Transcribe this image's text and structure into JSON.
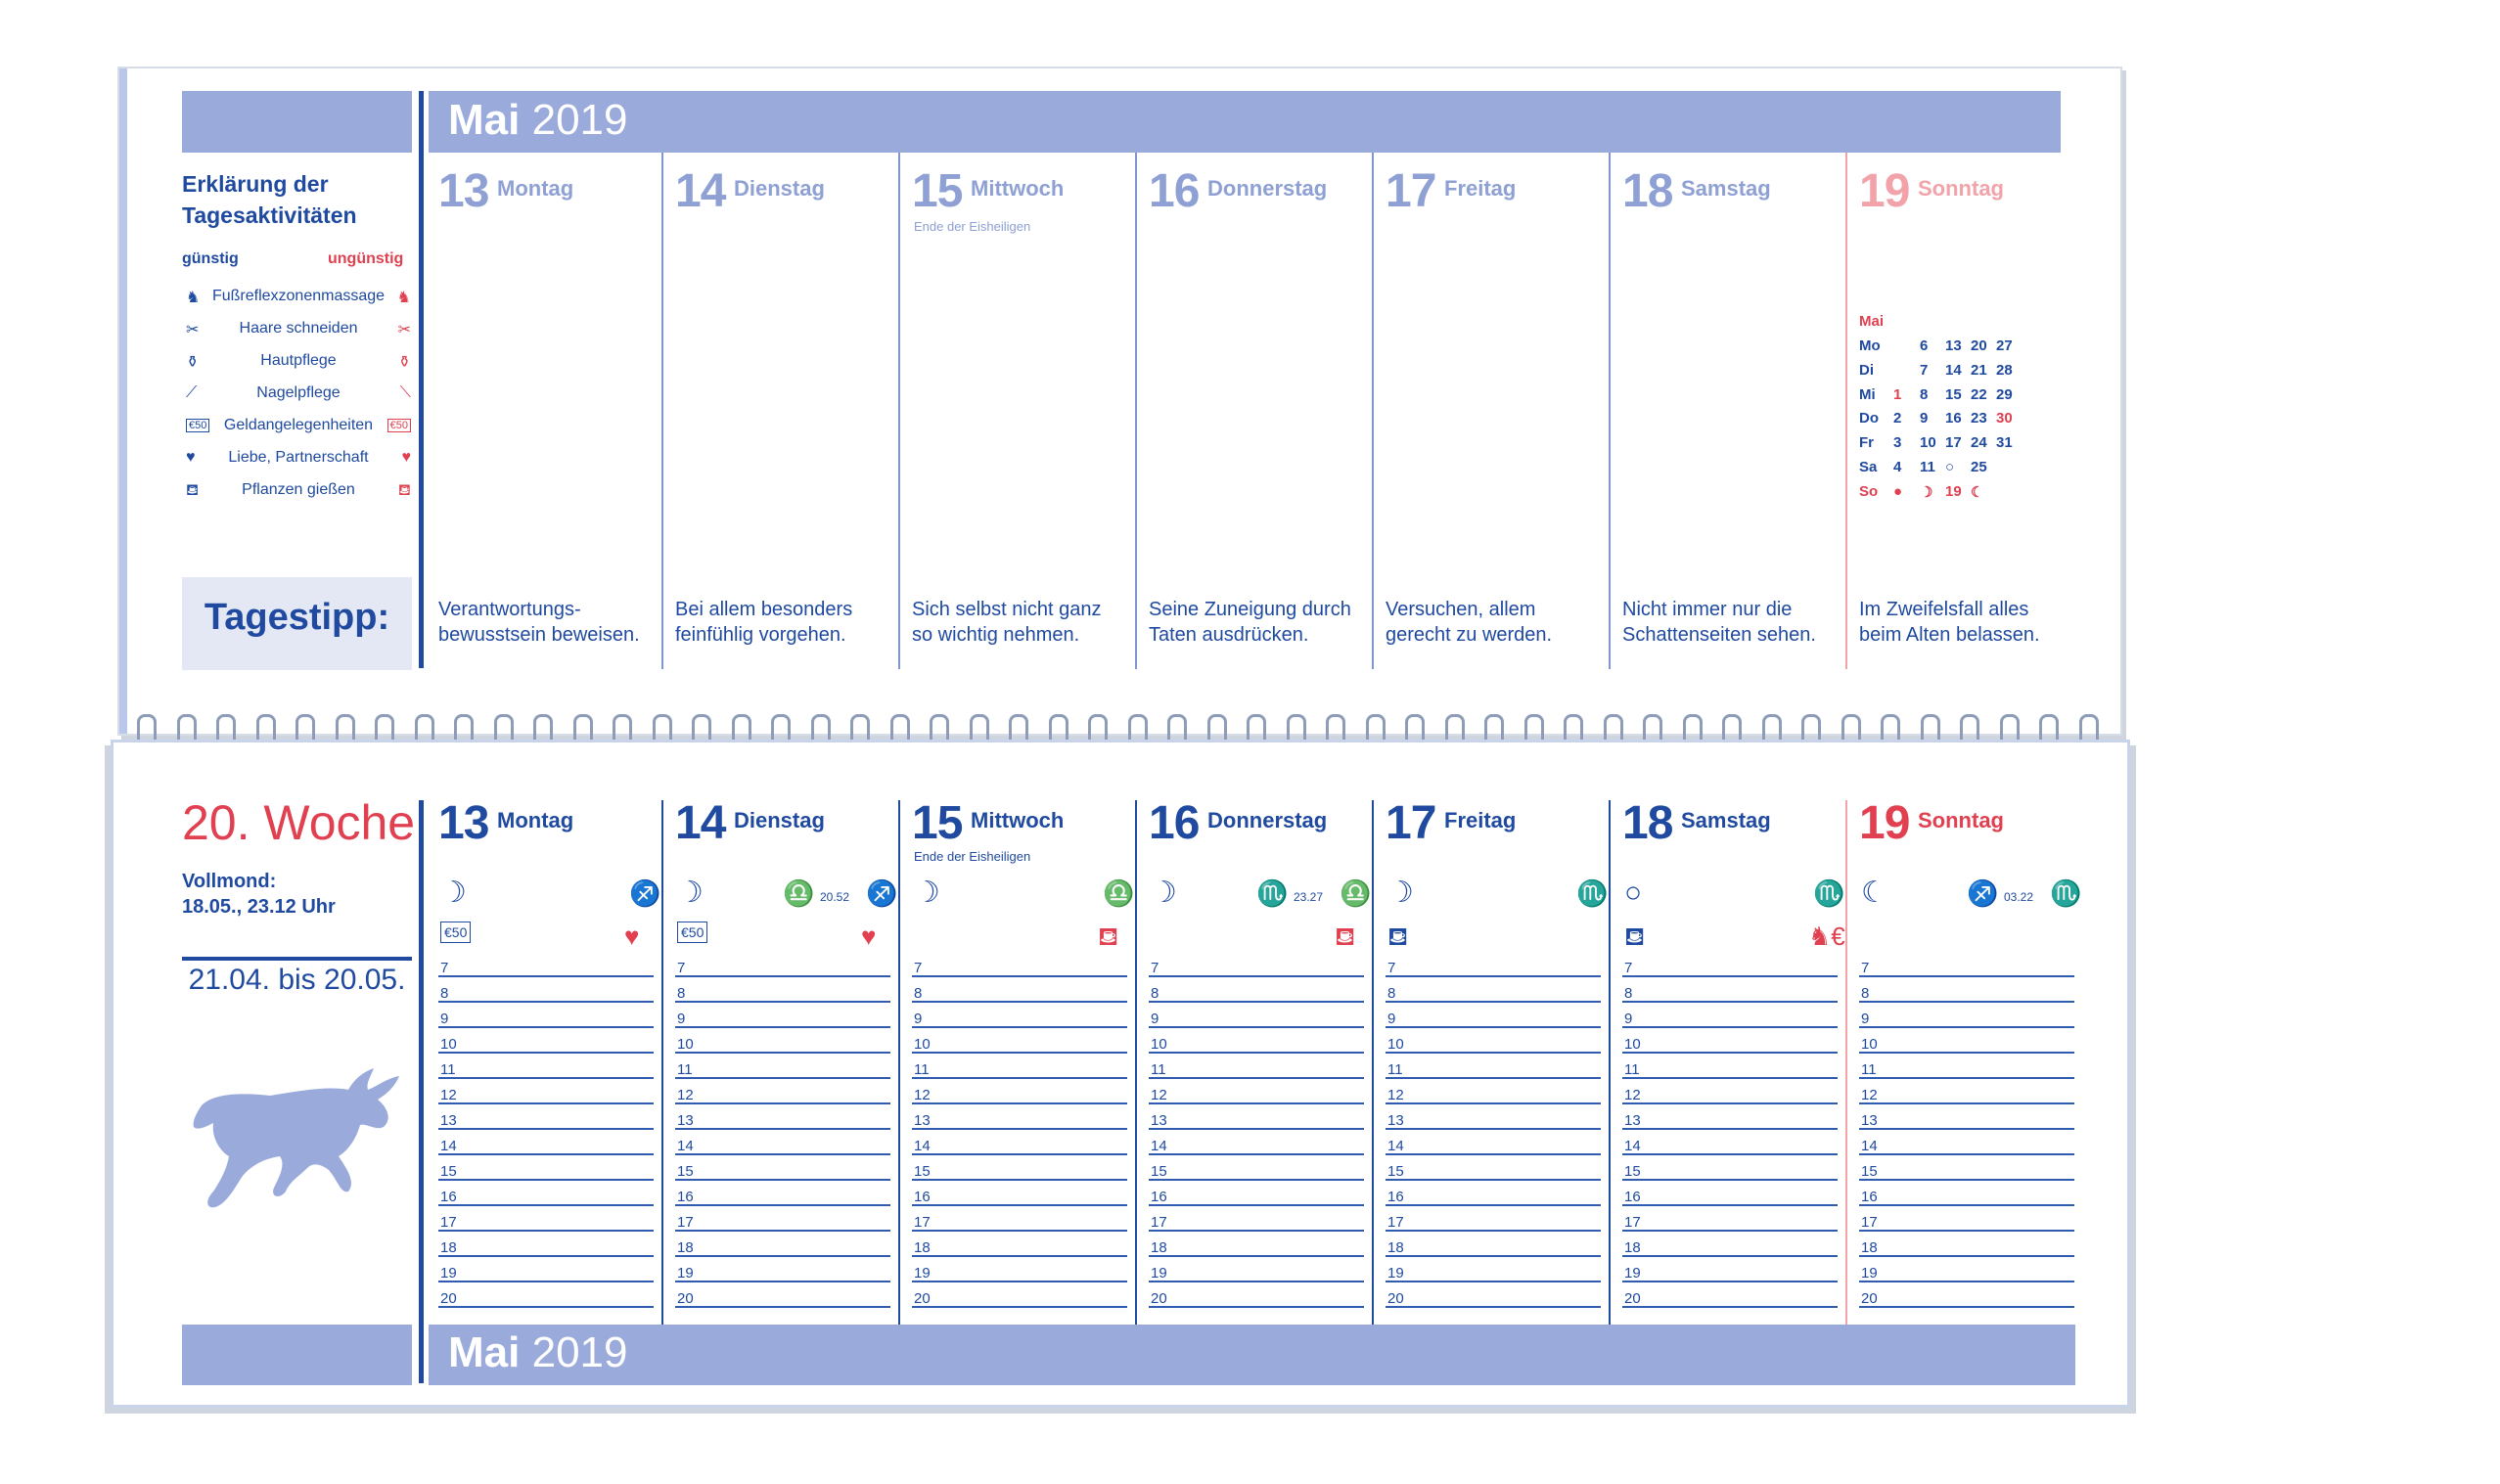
{
  "top_sheet": {
    "header": {
      "month": "Mai",
      "year": "2019"
    },
    "legend": {
      "title_line1": "Erklärung der",
      "title_line2": "Tagesaktivitäten",
      "favorable": "günstig",
      "unfavorable": "ungünstig",
      "items": [
        {
          "label": "Fußreflexzonenmassage",
          "icon": "foot-icon"
        },
        {
          "label": "Haare schneiden",
          "icon": "scissors-icon"
        },
        {
          "label": "Hautpflege",
          "icon": "cream-jar-icon"
        },
        {
          "label": "Nagelpflege",
          "icon": "nail-file-icon"
        },
        {
          "label": "Geldangelegenheiten",
          "icon": "money-icon"
        },
        {
          "label": "Liebe, Partnerschaft",
          "icon": "heart-icon"
        },
        {
          "label": "Pflanzen gießen",
          "icon": "watering-can-icon"
        }
      ]
    },
    "tagestipp_label": "Tagestipp:",
    "days": [
      {
        "num": "13",
        "name": "Montag",
        "note": "",
        "tip1": "Verantwortungs-",
        "tip2": "bewusstsein beweisen."
      },
      {
        "num": "14",
        "name": "Dienstag",
        "note": "",
        "tip1": "Bei allem besonders",
        "tip2": "feinfühlig vorgehen."
      },
      {
        "num": "15",
        "name": "Mittwoch",
        "note": "Ende der Eisheiligen",
        "tip1": "Sich selbst nicht ganz",
        "tip2": "so wichtig nehmen."
      },
      {
        "num": "16",
        "name": "Donnerstag",
        "note": "",
        "tip1": "Seine Zuneigung durch",
        "tip2": "Taten ausdrücken."
      },
      {
        "num": "17",
        "name": "Freitag",
        "note": "",
        "tip1": "Versuchen, allem",
        "tip2": "gerecht zu werden."
      },
      {
        "num": "18",
        "name": "Samstag",
        "note": "",
        "tip1": "Nicht immer nur die",
        "tip2": "Schattenseiten sehen."
      },
      {
        "num": "19",
        "name": "Sonntag",
        "note": "",
        "tip1": "Im Zweifelsfall alles",
        "tip2": "beim Alten belassen."
      }
    ],
    "mini_calendar": {
      "month": "Mai",
      "rows": [
        [
          "Mo",
          "",
          "6",
          "13",
          "20",
          "27"
        ],
        [
          "Di",
          "",
          "7",
          "14",
          "21",
          "28"
        ],
        [
          "Mi",
          "1",
          "8",
          "15",
          "22",
          "29"
        ],
        [
          "Do",
          "2",
          "9",
          "16",
          "23",
          "30"
        ],
        [
          "Fr",
          "3",
          "10",
          "17",
          "24",
          "31"
        ],
        [
          "Sa",
          "4",
          "11",
          "○",
          "25",
          ""
        ],
        [
          "So",
          "●",
          "☽",
          "19",
          "☾",
          ""
        ]
      ]
    }
  },
  "bottom_sheet": {
    "week": "20. Woche",
    "fullmoon_label": "Vollmond:",
    "fullmoon_date": "18.05., 23.12 Uhr",
    "zodiac_range": "21.04. bis 20.05.",
    "zodiac_sign": "bull-icon",
    "footer": {
      "month": "Mai",
      "year": "2019"
    },
    "hours": [
      "7",
      "8",
      "9",
      "10",
      "11",
      "12",
      "13",
      "14",
      "15",
      "16",
      "17",
      "18",
      "19",
      "20"
    ],
    "days": [
      {
        "num": "13",
        "name": "Montag",
        "note": "",
        "moon": "☽",
        "zodiac": "♐",
        "time": "",
        "zodiac2": "",
        "act_good": "money-icon",
        "act_bad": "heart-icon"
      },
      {
        "num": "14",
        "name": "Dienstag",
        "note": "",
        "moon": "☽",
        "zodiac": "♐",
        "time": "20.52",
        "zodiac2": "♎",
        "act_good": "money-icon",
        "act_bad": "heart-icon"
      },
      {
        "num": "15",
        "name": "Mittwoch",
        "note": "Ende der Eisheiligen",
        "moon": "☽",
        "zodiac": "♎",
        "time": "",
        "zodiac2": "",
        "act_good": "",
        "act_bad": "watering-can-icon"
      },
      {
        "num": "16",
        "name": "Donnerstag",
        "note": "",
        "moon": "☽",
        "zodiac": "♎",
        "time": "23.27",
        "zodiac2": "♏",
        "act_good": "",
        "act_bad": "watering-can-icon"
      },
      {
        "num": "17",
        "name": "Freitag",
        "note": "",
        "moon": "☽",
        "zodiac": "♏",
        "time": "",
        "zodiac2": "",
        "act_good": "watering-can-icon",
        "act_bad": ""
      },
      {
        "num": "18",
        "name": "Samstag",
        "note": "",
        "moon": "○",
        "zodiac": "♏",
        "time": "",
        "zodiac2": "",
        "act_good": "watering-can-icon",
        "act_bad": "foot-money-icon"
      },
      {
        "num": "19",
        "name": "Sonntag",
        "note": "",
        "moon": "☾",
        "zodiac": "♏",
        "time": "03.22",
        "zodiac2": "♐",
        "act_good": "",
        "act_bad": ""
      }
    ]
  },
  "colors": {
    "blue": "#1f4aa0",
    "band": "#9aaada",
    "light_blue": "#8ea0d4",
    "red": "#e04050",
    "pink": "#f2a3aa"
  }
}
